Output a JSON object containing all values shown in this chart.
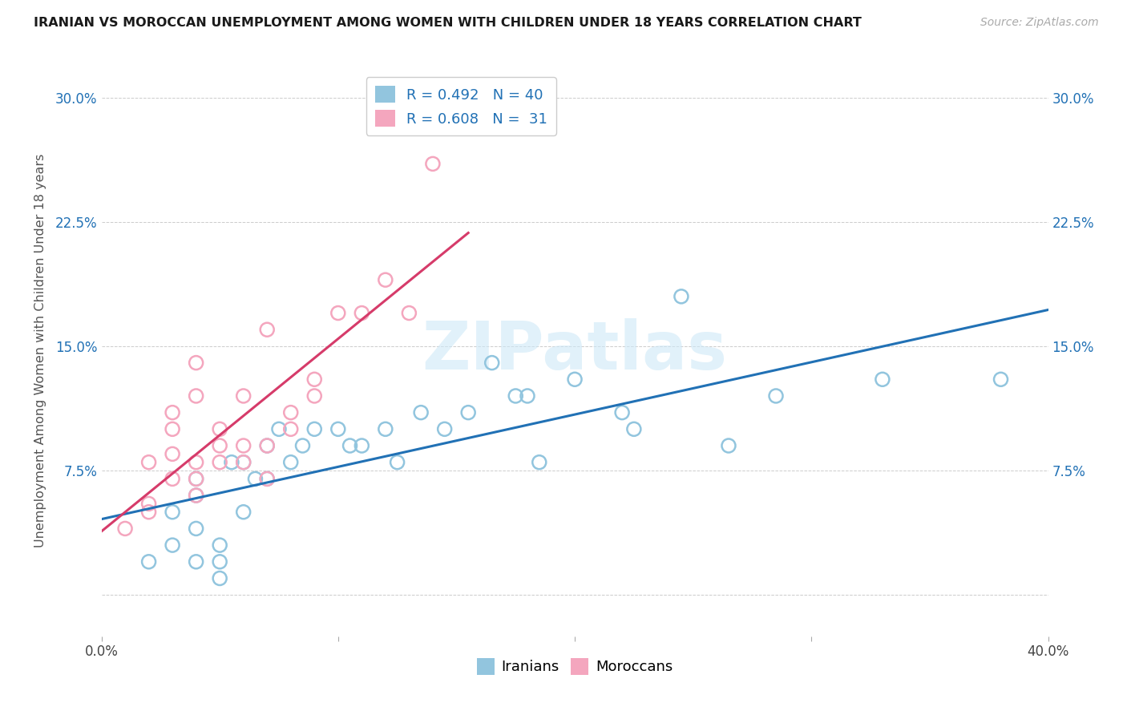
{
  "title": "IRANIAN VS MOROCCAN UNEMPLOYMENT AMONG WOMEN WITH CHILDREN UNDER 18 YEARS CORRELATION CHART",
  "source": "Source: ZipAtlas.com",
  "ylabel": "Unemployment Among Women with Children Under 18 years",
  "xlim": [
    0.0,
    0.4
  ],
  "ylim": [
    -0.025,
    0.32
  ],
  "iranian_R": 0.492,
  "iranian_N": 40,
  "moroccan_R": 0.608,
  "moroccan_N": 31,
  "iranian_color": "#92c5de",
  "moroccan_color": "#f4a6be",
  "iranian_line_color": "#2171b5",
  "moroccan_line_color": "#d63b6a",
  "text_color": "#1a1a2e",
  "watermark_color": "#cde8f7",
  "iranian_x": [
    0.02,
    0.03,
    0.03,
    0.04,
    0.04,
    0.04,
    0.04,
    0.05,
    0.05,
    0.05,
    0.055,
    0.06,
    0.06,
    0.065,
    0.07,
    0.07,
    0.075,
    0.08,
    0.085,
    0.09,
    0.1,
    0.105,
    0.11,
    0.12,
    0.125,
    0.135,
    0.145,
    0.155,
    0.165,
    0.175,
    0.18,
    0.185,
    0.2,
    0.22,
    0.225,
    0.245,
    0.265,
    0.285,
    0.33,
    0.38
  ],
  "iranian_y": [
    0.02,
    0.05,
    0.03,
    0.02,
    0.04,
    0.07,
    0.06,
    0.03,
    0.02,
    0.01,
    0.08,
    0.05,
    0.08,
    0.07,
    0.09,
    0.07,
    0.1,
    0.08,
    0.09,
    0.1,
    0.1,
    0.09,
    0.09,
    0.1,
    0.08,
    0.11,
    0.1,
    0.11,
    0.14,
    0.12,
    0.12,
    0.08,
    0.13,
    0.11,
    0.1,
    0.18,
    0.09,
    0.12,
    0.13,
    0.13
  ],
  "moroccan_x": [
    0.01,
    0.02,
    0.02,
    0.02,
    0.03,
    0.03,
    0.03,
    0.03,
    0.04,
    0.04,
    0.04,
    0.04,
    0.04,
    0.05,
    0.05,
    0.05,
    0.06,
    0.06,
    0.06,
    0.07,
    0.07,
    0.07,
    0.08,
    0.08,
    0.09,
    0.09,
    0.1,
    0.11,
    0.12,
    0.13,
    0.14
  ],
  "moroccan_y": [
    0.04,
    0.055,
    0.08,
    0.05,
    0.07,
    0.085,
    0.11,
    0.1,
    0.08,
    0.12,
    0.06,
    0.07,
    0.14,
    0.09,
    0.1,
    0.08,
    0.08,
    0.09,
    0.12,
    0.09,
    0.07,
    0.16,
    0.11,
    0.1,
    0.12,
    0.13,
    0.17,
    0.17,
    0.19,
    0.17,
    0.26
  ]
}
